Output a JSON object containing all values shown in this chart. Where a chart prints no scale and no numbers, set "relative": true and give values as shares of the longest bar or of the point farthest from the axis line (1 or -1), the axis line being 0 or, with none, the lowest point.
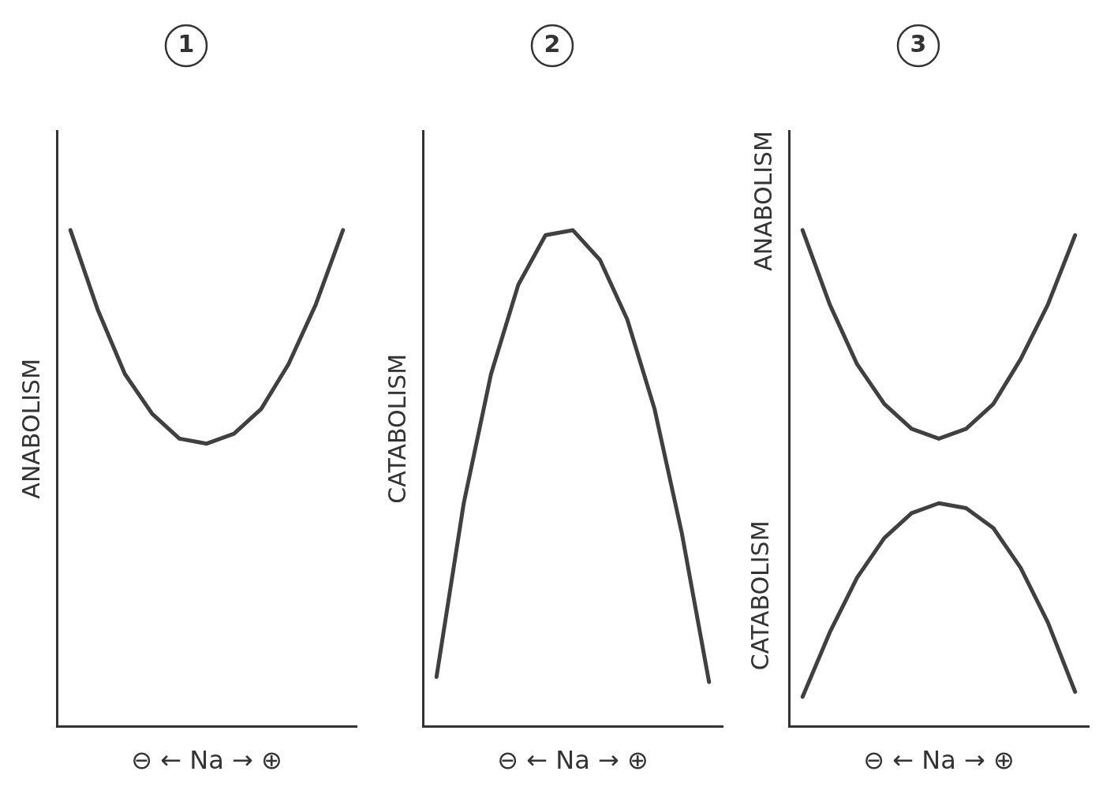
{
  "chart_data": [
    {
      "type": "line",
      "title": "1",
      "ylabel": "ANABOLISM",
      "xlabel": "⊖ ← Na → ⊕",
      "relative": true,
      "categories": [
        null,
        null,
        null,
        null,
        null,
        null,
        null,
        null,
        null,
        null,
        null
      ],
      "marker": "none",
      "grid": false,
      "legend": false,
      "tick_labels": false,
      "series": [
        {
          "color": "#404040",
          "values": [
            1.0,
            0.84,
            0.71,
            0.63,
            0.58,
            0.57,
            0.59,
            0.64,
            0.73,
            0.85,
            1.0
          ]
        }
      ]
    },
    {
      "type": "line",
      "title": "2",
      "ylabel": "CATABOLISM",
      "xlabel": "⊖ ← Na → ⊕",
      "relative": true,
      "categories": [
        null,
        null,
        null,
        null,
        null,
        null,
        null,
        null,
        null,
        null,
        null
      ],
      "marker": "none",
      "grid": false,
      "legend": false,
      "tick_labels": false,
      "series": [
        {
          "color": "#404040",
          "values": [
            0.1,
            0.45,
            0.71,
            0.89,
            0.99,
            1.0,
            0.94,
            0.82,
            0.64,
            0.39,
            0.09
          ]
        }
      ]
    },
    {
      "type": "line",
      "title": "3",
      "ylabel": "ANABOLISM",
      "xlabel": "⊖ ← Na → ⊕",
      "annotations": [
        "CATABOLISM"
      ],
      "relative": true,
      "categories": [
        null,
        null,
        null,
        null,
        null,
        null,
        null,
        null,
        null,
        null,
        null
      ],
      "marker": "none",
      "grid": false,
      "legend": false,
      "tick_labels": false,
      "series": [
        {
          "color": "#404040",
          "values": [
            1.0,
            0.85,
            0.73,
            0.65,
            0.6,
            0.58,
            0.6,
            0.65,
            0.74,
            0.85,
            0.99
          ]
        },
        {
          "color": "#404040",
          "values": [
            0.06,
            0.19,
            0.3,
            0.38,
            0.43,
            0.45,
            0.44,
            0.4,
            0.32,
            0.21,
            0.07
          ]
        }
      ]
    }
  ]
}
